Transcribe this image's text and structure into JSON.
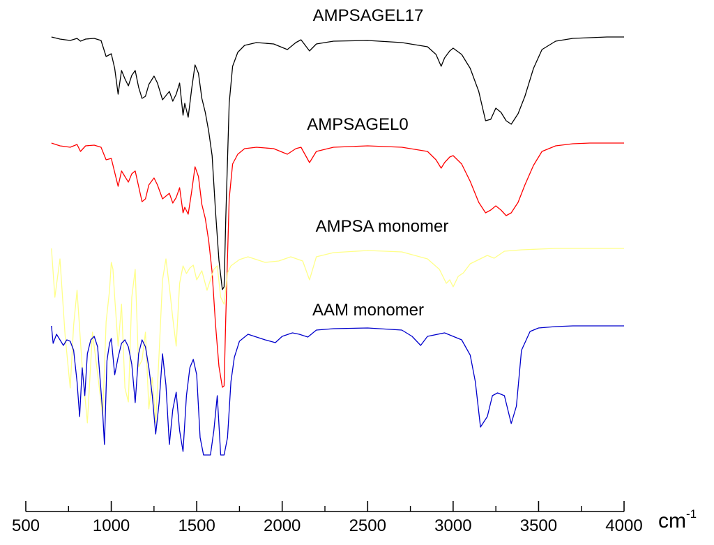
{
  "chart_data": {
    "type": "line",
    "title": "",
    "xlabel": "",
    "ylabel": "",
    "unit": {
      "base": "cm",
      "exponent": "-1"
    },
    "xlim": [
      500,
      4000
    ],
    "x_ticks_major": [
      "500",
      "1000",
      "1500",
      "2000",
      "2500",
      "3000",
      "3500",
      "4000"
    ],
    "x_ticks_minor": [
      750,
      1250,
      1750,
      2250,
      2750,
      3250,
      3750
    ],
    "y_axis": "none (stacked transmittance traces, arbitrary offsets)",
    "grid": false,
    "series": [
      {
        "name": "AMPSAGEL17",
        "color": "#000000",
        "baseline": 0,
        "x": [
          650,
          700,
          760,
          800,
          820,
          850,
          900,
          940,
          970,
          1000,
          1020,
          1040,
          1060,
          1080,
          1100,
          1120,
          1140,
          1160,
          1180,
          1200,
          1220,
          1250,
          1270,
          1300,
          1320,
          1340,
          1360,
          1380,
          1400,
          1420,
          1430,
          1450,
          1470,
          1490,
          1510,
          1530,
          1550,
          1570,
          1590,
          1610,
          1630,
          1650,
          1660,
          1670,
          1690,
          1710,
          1740,
          1780,
          1850,
          1950,
          2030,
          2080,
          2110,
          2160,
          2200,
          2300,
          2500,
          2700,
          2850,
          2900,
          2930,
          2950,
          2980,
          3000,
          3050,
          3100,
          3150,
          3190,
          3220,
          3250,
          3280,
          3310,
          3340,
          3380,
          3420,
          3470,
          3520,
          3600,
          3700,
          3800,
          3900,
          4000
        ],
        "y": [
          0,
          -3,
          -5,
          -2,
          -6,
          -3,
          -2,
          -5,
          -28,
          -24,
          -45,
          -82,
          -48,
          -60,
          -70,
          -55,
          -48,
          -72,
          -88,
          -85,
          -68,
          -56,
          -66,
          -90,
          -84,
          -78,
          -92,
          -82,
          -66,
          -112,
          -95,
          -115,
          -75,
          -40,
          -52,
          -88,
          -108,
          -135,
          -170,
          -250,
          -320,
          -362,
          -358,
          -260,
          -95,
          -42,
          -22,
          -12,
          -8,
          -10,
          -18,
          -8,
          -4,
          -20,
          -10,
          -6,
          -5,
          -8,
          -14,
          -25,
          -42,
          -30,
          -20,
          -16,
          -25,
          -45,
          -78,
          -120,
          -118,
          -102,
          -108,
          -120,
          -125,
          -110,
          -85,
          -45,
          -18,
          -6,
          -2,
          -1,
          0,
          0
        ]
      },
      {
        "name": "AMPSAGEL0",
        "color": "#ff0000",
        "baseline": 0,
        "x": [
          650,
          700,
          760,
          800,
          820,
          850,
          900,
          940,
          970,
          1000,
          1020,
          1040,
          1060,
          1080,
          1100,
          1120,
          1140,
          1160,
          1180,
          1200,
          1220,
          1250,
          1270,
          1300,
          1320,
          1340,
          1360,
          1380,
          1400,
          1420,
          1430,
          1450,
          1470,
          1490,
          1510,
          1530,
          1550,
          1570,
          1590,
          1610,
          1630,
          1650,
          1660,
          1670,
          1690,
          1710,
          1740,
          1780,
          1850,
          1950,
          2030,
          2080,
          2110,
          2160,
          2200,
          2300,
          2500,
          2700,
          2850,
          2900,
          2930,
          2950,
          2980,
          3000,
          3050,
          3100,
          3150,
          3190,
          3220,
          3250,
          3280,
          3310,
          3340,
          3380,
          3420,
          3470,
          3520,
          3600,
          3700,
          3800,
          3900,
          4000
        ],
        "y": [
          0,
          -4,
          -6,
          -2,
          -12,
          -4,
          -3,
          -6,
          -24,
          -22,
          -42,
          -62,
          -40,
          -48,
          -56,
          -44,
          -40,
          -62,
          -84,
          -80,
          -60,
          -50,
          -60,
          -80,
          -76,
          -72,
          -86,
          -78,
          -64,
          -100,
          -92,
          -102,
          -70,
          -34,
          -48,
          -88,
          -108,
          -140,
          -185,
          -260,
          -320,
          -350,
          -348,
          -250,
          -80,
          -30,
          -16,
          -8,
          -6,
          -8,
          -16,
          -8,
          -6,
          -28,
          -12,
          -6,
          -4,
          -6,
          -12,
          -24,
          -36,
          -28,
          -20,
          -18,
          -30,
          -55,
          -85,
          -100,
          -96,
          -90,
          -96,
          -104,
          -100,
          -85,
          -60,
          -32,
          -12,
          -4,
          -1,
          0,
          0,
          0
        ]
      },
      {
        "name": "AMPSA monomer",
        "color": "#ffff88",
        "baseline": 0,
        "x": [
          650,
          670,
          700,
          730,
          760,
          780,
          800,
          830,
          860,
          890,
          920,
          950,
          970,
          990,
          1000,
          1010,
          1020,
          1040,
          1060,
          1080,
          1100,
          1120,
          1140,
          1160,
          1180,
          1200,
          1220,
          1240,
          1260,
          1280,
          1300,
          1320,
          1340,
          1360,
          1380,
          1400,
          1420,
          1440,
          1460,
          1480,
          1500,
          1530,
          1560,
          1600,
          1620,
          1640,
          1660,
          1680,
          1700,
          1750,
          1800,
          1900,
          1980,
          2050,
          2120,
          2160,
          2200,
          2300,
          2500,
          2700,
          2850,
          2920,
          2960,
          2980,
          3000,
          3030,
          3060,
          3100,
          3200,
          3240,
          3300,
          3400,
          3500,
          3600,
          3800,
          4000
        ],
        "y": [
          0,
          -70,
          -15,
          -125,
          -200,
          -110,
          -60,
          -170,
          -250,
          -120,
          -180,
          -240,
          -105,
          -60,
          -20,
          -30,
          -70,
          -140,
          -80,
          -200,
          -220,
          -70,
          -30,
          -170,
          -160,
          -120,
          -230,
          -185,
          -250,
          -150,
          -45,
          -15,
          -55,
          -100,
          -140,
          -50,
          -25,
          -36,
          -28,
          -24,
          -45,
          -32,
          -60,
          -30,
          -25,
          -70,
          -80,
          -35,
          -25,
          -16,
          -12,
          -20,
          -18,
          -12,
          -18,
          -45,
          -12,
          -6,
          -3,
          -5,
          -15,
          -30,
          -50,
          -45,
          -55,
          -40,
          -35,
          -22,
          -10,
          -14,
          -4,
          -2,
          -1,
          0,
          0,
          0
        ]
      },
      {
        "name": "AAM monomer",
        "color": "#0000cc",
        "baseline": 0,
        "x": [
          650,
          660,
          680,
          700,
          720,
          740,
          760,
          780,
          800,
          815,
          830,
          845,
          860,
          880,
          900,
          920,
          950,
          960,
          975,
          990,
          1000,
          1020,
          1040,
          1060,
          1080,
          1100,
          1120,
          1140,
          1160,
          1180,
          1200,
          1220,
          1240,
          1260,
          1280,
          1300,
          1320,
          1340,
          1360,
          1380,
          1400,
          1420,
          1440,
          1460,
          1480,
          1500,
          1520,
          1540,
          1560,
          1580,
          1600,
          1620,
          1640,
          1660,
          1680,
          1700,
          1720,
          1750,
          1800,
          1850,
          1900,
          1960,
          2000,
          2060,
          2100,
          2150,
          2200,
          2300,
          2500,
          2700,
          2760,
          2810,
          2850,
          2950,
          3050,
          3100,
          3130,
          3160,
          3200,
          3230,
          3260,
          3300,
          3340,
          3370,
          3400,
          3450,
          3500,
          3600,
          3700,
          3800,
          3900,
          4000
        ],
        "y": [
          0,
          -25,
          -12,
          -20,
          -28,
          -20,
          -22,
          -35,
          -80,
          -130,
          -60,
          -100,
          -40,
          -20,
          -15,
          -30,
          -125,
          -170,
          -50,
          -25,
          -18,
          -70,
          -45,
          -25,
          -20,
          -30,
          -55,
          -110,
          -40,
          -20,
          -30,
          -60,
          -100,
          -155,
          -110,
          -40,
          -85,
          -170,
          -120,
          -95,
          -150,
          -180,
          -100,
          -60,
          -48,
          -70,
          -160,
          -185,
          -185,
          -185,
          -150,
          -100,
          -185,
          -185,
          -160,
          -80,
          -45,
          -22,
          -12,
          -16,
          -20,
          -24,
          -15,
          -10,
          -12,
          -16,
          -6,
          -4,
          -3,
          -6,
          -15,
          -28,
          -15,
          -10,
          -20,
          -42,
          -80,
          -145,
          -130,
          -100,
          -96,
          -100,
          -140,
          -115,
          -35,
          -8,
          -3,
          -1,
          0,
          0,
          0,
          0
        ]
      }
    ]
  }
}
